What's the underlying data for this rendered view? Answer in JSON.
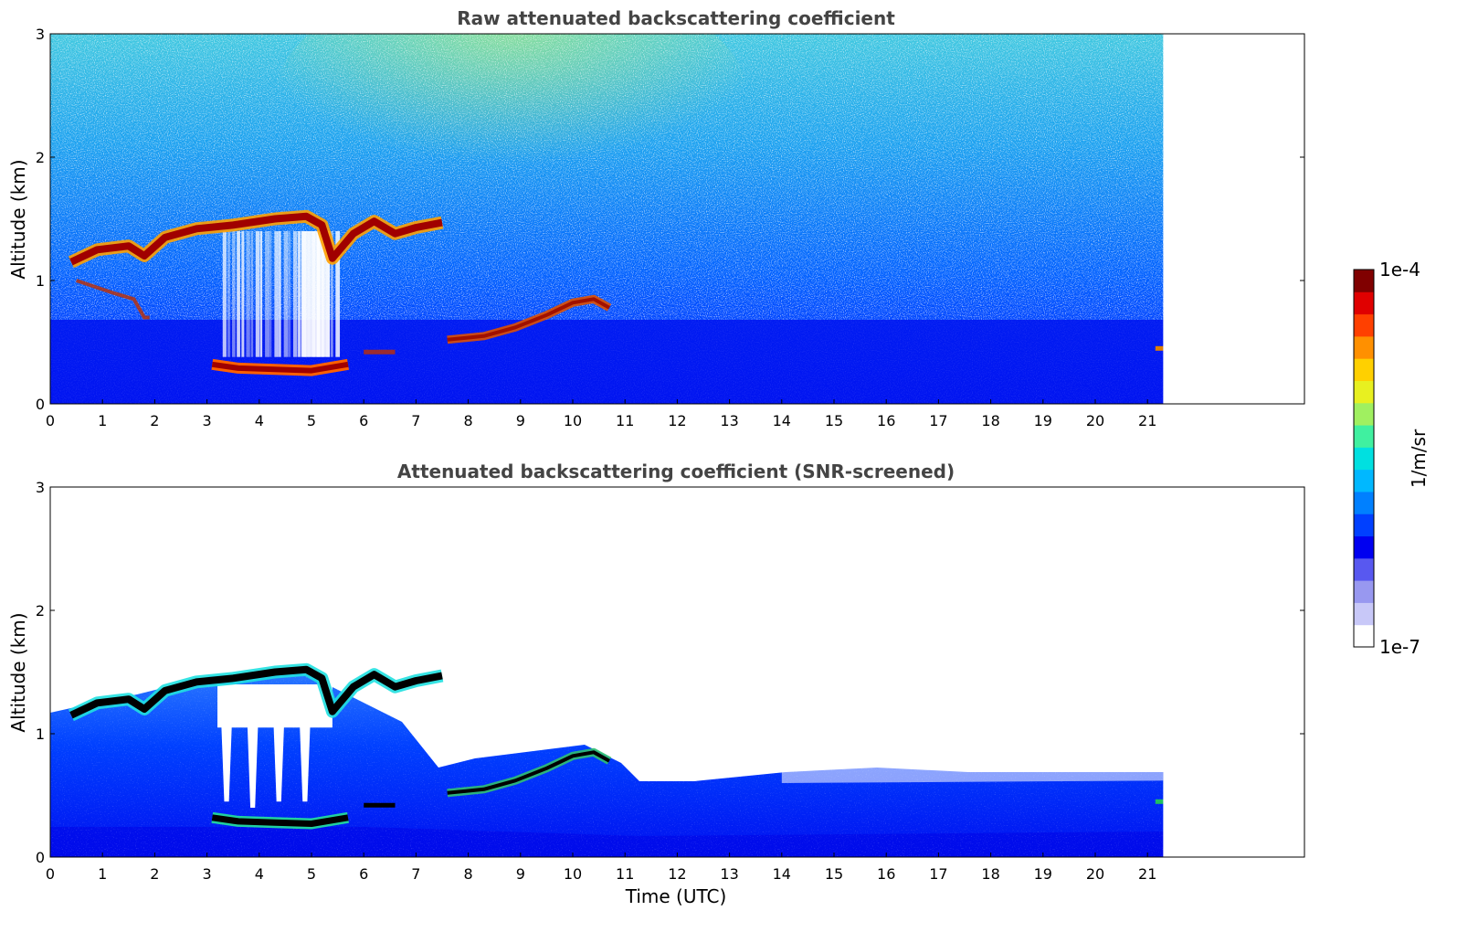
{
  "chart_data": [
    {
      "type": "heatmap",
      "title": "Raw attenuated backscattering coefficient",
      "xlabel": "",
      "ylabel": "Altitude (km)",
      "xlim": [
        0,
        24
      ],
      "ylim": [
        0,
        3
      ],
      "xticks": [
        "0",
        "1",
        "2",
        "3",
        "4",
        "5",
        "6",
        "7",
        "8",
        "9",
        "10",
        "11",
        "12",
        "13",
        "14",
        "15",
        "16",
        "17",
        "18",
        "19",
        "20",
        "21"
      ],
      "yticks": [
        "0",
        "1",
        "2",
        "3"
      ],
      "data_end_hour": 21.3,
      "description_layers": [
        {
          "name": "cloud layer",
          "start_hour": 0.4,
          "end_hour": 7.5,
          "altitude_km": [
            1.15,
            1.25,
            1.35,
            1.42,
            1.45,
            1.5,
            1.52,
            1.2,
            1.45,
            1.38,
            1.47
          ]
        },
        {
          "name": "lower cloud",
          "start_hour": 3.1,
          "end_hour": 5.7,
          "altitude_km": 0.3
        },
        {
          "name": "rising layer",
          "start_hour": 7.5,
          "end_hour": 10.7,
          "altitude_km_start": 0.5,
          "altitude_km_end": 0.85
        }
      ]
    },
    {
      "type": "heatmap",
      "title": "Attenuated backscattering coefficient (SNR-screened)",
      "xlabel": "Time (UTC)",
      "ylabel": "Altitude (km)",
      "xlim": [
        0,
        24
      ],
      "ylim": [
        0,
        3
      ],
      "xticks": [
        "0",
        "1",
        "2",
        "3",
        "4",
        "5",
        "6",
        "7",
        "8",
        "9",
        "10",
        "11",
        "12",
        "13",
        "14",
        "15",
        "16",
        "17",
        "18",
        "19",
        "20",
        "21"
      ],
      "yticks": [
        "0",
        "1",
        "2",
        "3"
      ],
      "data_end_hour": 21.3
    }
  ],
  "colorbar": {
    "label": "1/m/sr",
    "max_label": "1e-4",
    "min_label": "1e-7",
    "colors": [
      "#ffffff",
      "#c8c8f8",
      "#9898f0",
      "#5858f0",
      "#0000f0",
      "#0040ff",
      "#0080ff",
      "#00b8ff",
      "#00e0e0",
      "#40f0a0",
      "#a0f060",
      "#e8f020",
      "#ffd000",
      "#ff9000",
      "#ff4000",
      "#e00000",
      "#800000"
    ]
  }
}
